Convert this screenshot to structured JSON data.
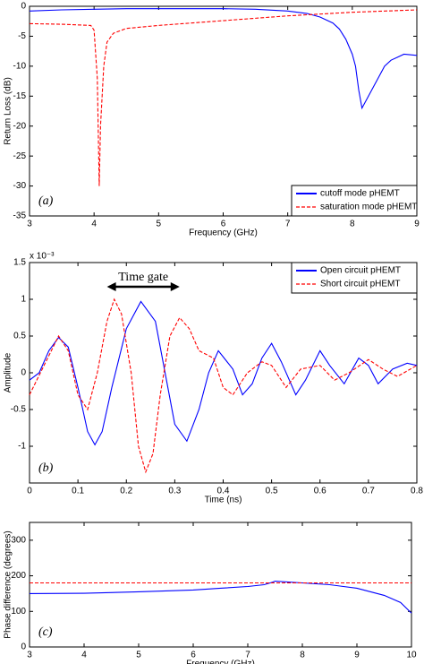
{
  "chart_data": [
    {
      "type": "line",
      "panel_label": "(a)",
      "xlabel": "Frequency (GHz)",
      "ylabel": "Return Loss (dB)",
      "xlim": [
        3,
        9
      ],
      "xticks": [
        3,
        4,
        5,
        6,
        7,
        8,
        9
      ],
      "ylim": [
        -35,
        0
      ],
      "yticks": [
        -35,
        -30,
        -25,
        -20,
        -15,
        -10,
        -5,
        0
      ],
      "legend": "lower right",
      "series": [
        {
          "name": "cutoff mode pHEMT",
          "color": "#0000ff",
          "style": "solid",
          "x": [
            3,
            3.5,
            4,
            4.5,
            5,
            5.5,
            6,
            6.5,
            7,
            7.3,
            7.5,
            7.7,
            7.8,
            7.9,
            8,
            8.05,
            8.1,
            8.15,
            8.2,
            8.3,
            8.4,
            8.5,
            8.6,
            8.7,
            8.8,
            9
          ],
          "values": [
            -0.8,
            -0.6,
            -0.5,
            -0.4,
            -0.4,
            -0.4,
            -0.4,
            -0.5,
            -0.8,
            -1.2,
            -1.8,
            -2.8,
            -3.8,
            -5.5,
            -8,
            -10,
            -14,
            -17,
            -16,
            -14,
            -12,
            -10,
            -9,
            -8.5,
            -8,
            -8.2
          ]
        },
        {
          "name": "saturation mode pHEMT",
          "color": "#ff0000",
          "style": "dashed",
          "x": [
            3,
            3.5,
            3.95,
            4,
            4.05,
            4.08,
            4.1,
            4.15,
            4.2,
            4.3,
            4.5,
            5,
            5.5,
            6,
            6.5,
            7,
            7.5,
            8,
            8.5,
            9
          ],
          "values": [
            -2.9,
            -3,
            -3.2,
            -4,
            -12,
            -30,
            -20,
            -10,
            -6,
            -4.5,
            -3.7,
            -3.2,
            -2.8,
            -2.4,
            -2,
            -1.6,
            -1.3,
            -1,
            -0.8,
            -0.6
          ]
        }
      ]
    },
    {
      "type": "line",
      "panel_label": "(b)",
      "xlabel": "Time (ns)",
      "ylabel": "Amplitude",
      "y_multiplier": "x 10⁻³",
      "time_gate": {
        "label": "Time gate",
        "span": [
          0.16,
          0.31
        ]
      },
      "xlim": [
        0,
        0.8
      ],
      "xticks": [
        0,
        0.1,
        0.2,
        0.3,
        0.4,
        0.5,
        0.6,
        0.7,
        0.8
      ],
      "ylim": [
        -1.5,
        1.5
      ],
      "yticks": [
        -1,
        -0.5,
        0,
        0.5,
        1,
        1.5
      ],
      "legend": "upper right",
      "series": [
        {
          "name": "Open circuit pHEMT",
          "color": "#0000ff",
          "style": "solid",
          "x": [
            0,
            0.02,
            0.04,
            0.06,
            0.08,
            0.1,
            0.12,
            0.135,
            0.15,
            0.17,
            0.2,
            0.23,
            0.26,
            0.28,
            0.3,
            0.325,
            0.35,
            0.37,
            0.39,
            0.42,
            0.44,
            0.46,
            0.48,
            0.5,
            0.52,
            0.55,
            0.57,
            0.6,
            0.62,
            0.65,
            0.68,
            0.7,
            0.72,
            0.75,
            0.78,
            0.8
          ],
          "values": [
            -0.1,
            0,
            0.3,
            0.48,
            0.35,
            -0.2,
            -0.8,
            -0.98,
            -0.8,
            -0.2,
            0.6,
            0.97,
            0.7,
            0,
            -0.7,
            -0.93,
            -0.5,
            0,
            0.3,
            0.05,
            -0.3,
            -0.15,
            0.2,
            0.4,
            0.15,
            -0.3,
            -0.1,
            0.3,
            0.1,
            -0.15,
            0.2,
            0.1,
            -0.15,
            0.05,
            0.13,
            0.1
          ]
        },
        {
          "name": "Short circuit pHEMT",
          "color": "#ff0000",
          "style": "dashed",
          "x": [
            0,
            0.03,
            0.06,
            0.08,
            0.1,
            0.12,
            0.14,
            0.16,
            0.175,
            0.19,
            0.21,
            0.225,
            0.24,
            0.255,
            0.27,
            0.29,
            0.31,
            0.33,
            0.35,
            0.38,
            0.4,
            0.42,
            0.45,
            0.48,
            0.5,
            0.53,
            0.56,
            0.6,
            0.63,
            0.66,
            0.7,
            0.73,
            0.76,
            0.8
          ],
          "values": [
            -0.3,
            0.1,
            0.5,
            0.3,
            -0.3,
            -0.5,
            0,
            0.7,
            1.0,
            0.8,
            0,
            -1.0,
            -1.35,
            -1.1,
            -0.3,
            0.5,
            0.75,
            0.6,
            0.3,
            0.2,
            -0.2,
            -0.3,
            0,
            0.15,
            0.1,
            -0.2,
            0.05,
            0.1,
            -0.1,
            0,
            0.18,
            0.05,
            -0.05,
            0.1
          ]
        }
      ]
    },
    {
      "type": "line",
      "panel_label": "(c)",
      "xlabel": "Frequency (GHz)",
      "ylabel": "Phase difference (degrees)",
      "xlim": [
        3,
        10
      ],
      "xticks": [
        3,
        4,
        5,
        6,
        7,
        8,
        9,
        10
      ],
      "ylim": [
        0,
        350
      ],
      "yticks": [
        0,
        100,
        200,
        300
      ],
      "series": [
        {
          "color": "#0000ff",
          "style": "solid",
          "x": [
            3,
            4,
            5,
            6,
            6.5,
            7,
            7.3,
            7.45,
            7.5,
            8,
            8.5,
            9,
            9.5,
            9.8,
            10
          ],
          "values": [
            150,
            151,
            155,
            160,
            165,
            170,
            175,
            182,
            185,
            180,
            175,
            165,
            145,
            125,
            95
          ]
        },
        {
          "color": "#ff0000",
          "style": "dashed",
          "x": [
            3,
            10
          ],
          "values": [
            180,
            180
          ]
        }
      ]
    }
  ]
}
